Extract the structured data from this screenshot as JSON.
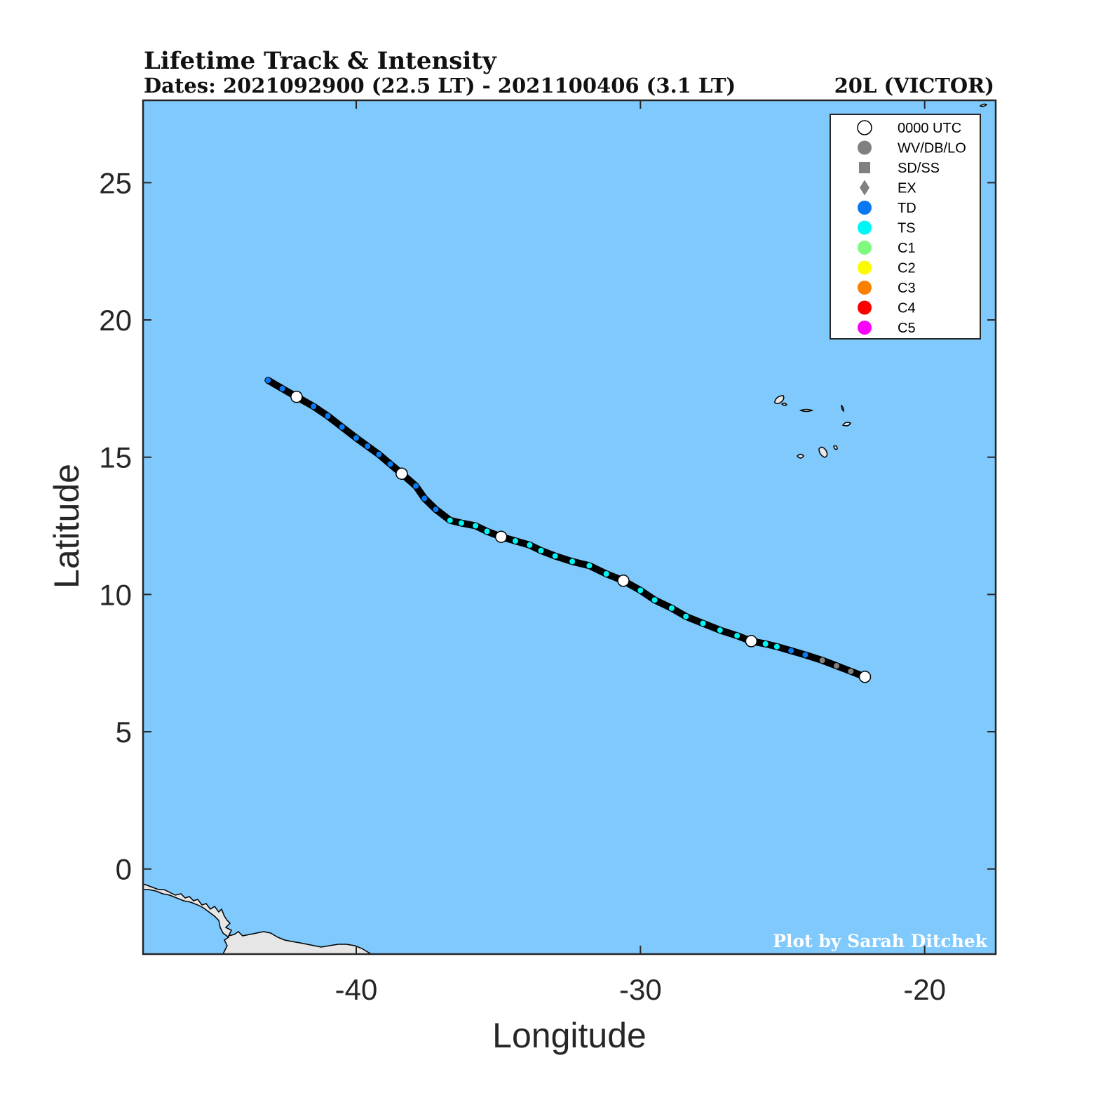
{
  "header": {
    "title": "Lifetime Track & Intensity",
    "dates": "Dates: 2021092900 (22.5 LT) - 2021100406 (3.1 LT)",
    "storm": "20L (VICTOR)"
  },
  "credit": "Plot by Sarah Ditchek",
  "colors": {
    "ocean": "#80c9fc",
    "land": "#e6e6e6",
    "track": "#000000",
    "open_circle": "#ffffff",
    "WV/DB/LO": "#808080",
    "TD": "#0a78f0",
    "TS": "#00f5f5",
    "C1": "#7ffa7f",
    "C2": "#fafa00",
    "C3": "#fa8000",
    "C4": "#fa0000",
    "C5": "#fa00fa"
  },
  "legend": [
    {
      "label": "0000 UTC",
      "symbol": "open-circle",
      "color": "#ffffff"
    },
    {
      "label": "WV/DB/LO",
      "symbol": "circle",
      "color": "#808080"
    },
    {
      "label": "SD/SS",
      "symbol": "square",
      "color": "#808080"
    },
    {
      "label": "EX",
      "symbol": "diamond",
      "color": "#808080"
    },
    {
      "label": "TD",
      "symbol": "circle",
      "color": "#0a78f0"
    },
    {
      "label": "TS",
      "symbol": "circle",
      "color": "#00f5f5"
    },
    {
      "label": "C1",
      "symbol": "circle",
      "color": "#7ffa7f"
    },
    {
      "label": "C2",
      "symbol": "circle",
      "color": "#fafa00"
    },
    {
      "label": "C3",
      "symbol": "circle",
      "color": "#fa8000"
    },
    {
      "label": "C4",
      "symbol": "circle",
      "color": "#fa0000"
    },
    {
      "label": "C5",
      "symbol": "circle",
      "color": "#fa00fa"
    }
  ],
  "chart_data": {
    "type": "scatter",
    "xlabel": "Longitude",
    "ylabel": "Latitude",
    "xlim": [
      -47.5,
      -17.5
    ],
    "ylim": [
      -3.1,
      28
    ],
    "xticks": [
      -40,
      -30,
      -20
    ],
    "yticks": [
      0,
      5,
      10,
      15,
      20,
      25
    ],
    "track": [
      {
        "lon": -22.1,
        "lat": 7.0,
        "cat": "0000 UTC"
      },
      {
        "lon": -22.6,
        "lat": 7.2,
        "cat": "WV/DB/LO"
      },
      {
        "lon": -23.1,
        "lat": 7.4,
        "cat": "WV/DB/LO"
      },
      {
        "lon": -23.6,
        "lat": 7.6,
        "cat": "WV/DB/LO"
      },
      {
        "lon": -24.2,
        "lat": 7.8,
        "cat": "TD"
      },
      {
        "lon": -24.7,
        "lat": 7.95,
        "cat": "TD"
      },
      {
        "lon": -25.2,
        "lat": 8.1,
        "cat": "TS"
      },
      {
        "lon": -25.6,
        "lat": 8.2,
        "cat": "TS"
      },
      {
        "lon": -26.1,
        "lat": 8.3,
        "cat": "0000 UTC"
      },
      {
        "lon": -26.6,
        "lat": 8.5,
        "cat": "TS"
      },
      {
        "lon": -27.2,
        "lat": 8.7,
        "cat": "TS"
      },
      {
        "lon": -27.8,
        "lat": 8.95,
        "cat": "TS"
      },
      {
        "lon": -28.4,
        "lat": 9.2,
        "cat": "TS"
      },
      {
        "lon": -28.9,
        "lat": 9.5,
        "cat": "TS"
      },
      {
        "lon": -29.5,
        "lat": 9.8,
        "cat": "TS"
      },
      {
        "lon": -30.0,
        "lat": 10.15,
        "cat": "TS"
      },
      {
        "lon": -30.6,
        "lat": 10.5,
        "cat": "0000 UTC"
      },
      {
        "lon": -31.2,
        "lat": 10.75,
        "cat": "TS"
      },
      {
        "lon": -31.8,
        "lat": 11.05,
        "cat": "TS"
      },
      {
        "lon": -32.4,
        "lat": 11.2,
        "cat": "TS"
      },
      {
        "lon": -33.0,
        "lat": 11.4,
        "cat": "TS"
      },
      {
        "lon": -33.5,
        "lat": 11.6,
        "cat": "TS"
      },
      {
        "lon": -33.9,
        "lat": 11.8,
        "cat": "TS"
      },
      {
        "lon": -34.4,
        "lat": 11.95,
        "cat": "TS"
      },
      {
        "lon": -34.9,
        "lat": 12.1,
        "cat": "0000 UTC"
      },
      {
        "lon": -35.4,
        "lat": 12.3,
        "cat": "TS"
      },
      {
        "lon": -35.8,
        "lat": 12.5,
        "cat": "TS"
      },
      {
        "lon": -36.3,
        "lat": 12.6,
        "cat": "TS"
      },
      {
        "lon": -36.7,
        "lat": 12.7,
        "cat": "TS"
      },
      {
        "lon": -37.2,
        "lat": 13.1,
        "cat": "TD"
      },
      {
        "lon": -37.6,
        "lat": 13.5,
        "cat": "TD"
      },
      {
        "lon": -37.9,
        "lat": 13.95,
        "cat": "TD"
      },
      {
        "lon": -38.4,
        "lat": 14.4,
        "cat": "0000 UTC"
      },
      {
        "lon": -38.8,
        "lat": 14.75,
        "cat": "TD"
      },
      {
        "lon": -39.2,
        "lat": 15.1,
        "cat": "TD"
      },
      {
        "lon": -39.6,
        "lat": 15.4,
        "cat": "TD"
      },
      {
        "lon": -40.0,
        "lat": 15.7,
        "cat": "TD"
      },
      {
        "lon": -40.5,
        "lat": 16.1,
        "cat": "TD"
      },
      {
        "lon": -41.0,
        "lat": 16.5,
        "cat": "TD"
      },
      {
        "lon": -41.5,
        "lat": 16.85,
        "cat": "TD"
      },
      {
        "lon": -42.1,
        "lat": 17.2,
        "cat": "0000 UTC"
      },
      {
        "lon": -42.6,
        "lat": 17.5,
        "cat": "TD"
      },
      {
        "lon": -43.1,
        "lat": 17.8,
        "cat": "TD"
      }
    ]
  }
}
